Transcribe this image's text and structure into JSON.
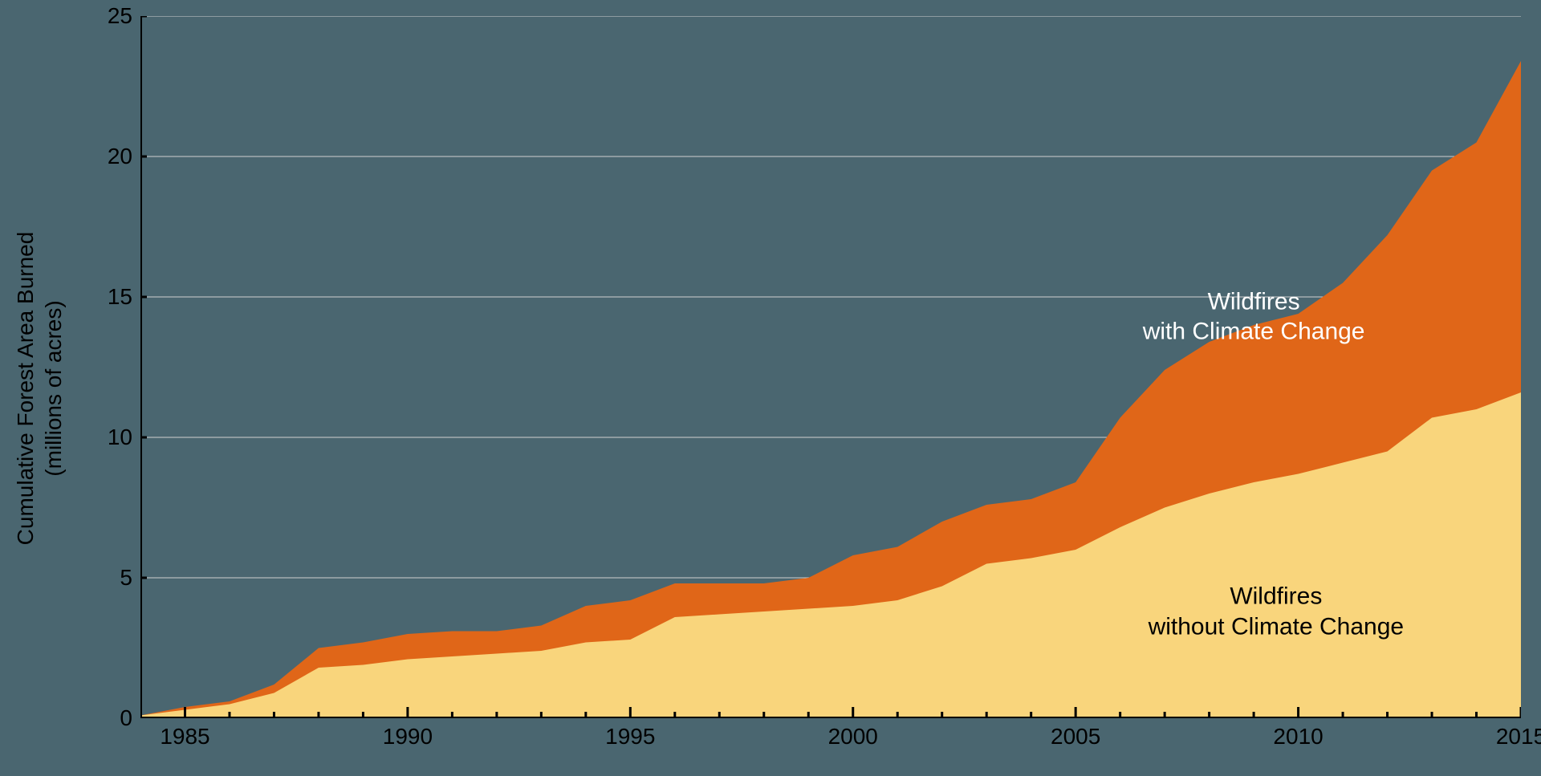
{
  "chart": {
    "type": "area",
    "background_color": "#4a6670",
    "grid_color": "#d0d0d0",
    "grid_line_width": 1,
    "axis_line_color": "#000000",
    "axis_line_width": 4,
    "tick_color": "#000000",
    "tick_length_minor": 8,
    "tick_length_major": 14,
    "minor_x_step": 1,
    "font_family": "Arial",
    "tick_fontsize": 28,
    "axis_label_fontsize": 28,
    "series_label_fontsize": 30,
    "y_axis_label_line1": "Cumulative Forest Area Burned",
    "y_axis_label_line2": "(millions of acres)",
    "xlim": [
      1984,
      2015
    ],
    "ylim": [
      0,
      25
    ],
    "x_ticks": [
      1985,
      1990,
      1995,
      2000,
      2005,
      2010,
      2015
    ],
    "y_ticks": [
      0,
      5,
      10,
      15,
      20,
      25
    ],
    "years": [
      1984,
      1985,
      1986,
      1987,
      1988,
      1989,
      1990,
      1991,
      1992,
      1993,
      1994,
      1995,
      1996,
      1997,
      1998,
      1999,
      2000,
      2001,
      2002,
      2003,
      2004,
      2005,
      2006,
      2007,
      2008,
      2009,
      2010,
      2011,
      2012,
      2013,
      2014,
      2015
    ],
    "series": [
      {
        "name": "with_climate_change",
        "label_line1": "Wildfires",
        "label_line2": "with Climate Change",
        "label_color": "#ffffff",
        "label_x": 2009,
        "label_y": 14.3,
        "fill_color": "#e06618",
        "values": [
          0.1,
          0.4,
          0.6,
          1.2,
          2.5,
          2.7,
          3.0,
          3.1,
          3.1,
          3.3,
          4.0,
          4.2,
          4.8,
          4.8,
          4.8,
          5.0,
          5.8,
          6.1,
          7.0,
          7.6,
          7.8,
          8.4,
          10.7,
          12.4,
          13.4,
          14.0,
          14.4,
          15.5,
          17.2,
          19.5,
          20.5,
          23.4
        ]
      },
      {
        "name": "without_climate_change",
        "label_line1": "Wildfires",
        "label_line2": "without Climate Change",
        "label_color": "#000000",
        "label_x": 2009.5,
        "label_y": 3.8,
        "fill_color": "#f9d57c",
        "values": [
          0.1,
          0.3,
          0.5,
          0.9,
          1.8,
          1.9,
          2.1,
          2.2,
          2.3,
          2.4,
          2.7,
          2.8,
          3.6,
          3.7,
          3.8,
          3.9,
          4.0,
          4.2,
          4.7,
          5.5,
          5.7,
          6.0,
          6.8,
          7.5,
          8.0,
          8.4,
          8.7,
          9.1,
          9.5,
          10.7,
          11.0,
          11.6
        ]
      }
    ]
  }
}
